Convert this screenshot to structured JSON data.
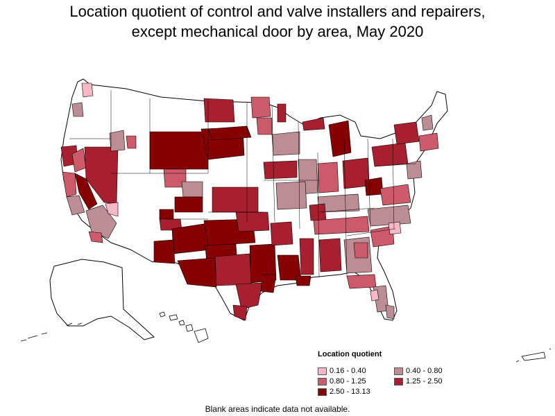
{
  "title": {
    "line1": "Location quotient of control and valve installers and repairers,",
    "line2": "except mechanical door by area, May 2020"
  },
  "legend": {
    "title": "Location quotient",
    "items": [
      {
        "label": "0.16 - 0.40",
        "color": "#f5b8c4"
      },
      {
        "label": "0.40 - 0.80",
        "color": "#bd8d94"
      },
      {
        "label": "0.80 - 1.25",
        "color": "#cc5a68"
      },
      {
        "label": "1.25 - 2.50",
        "color": "#a8202f"
      },
      {
        "label": "2.50 - 13.13",
        "color": "#870000"
      }
    ]
  },
  "footnote": "Blank areas indicate data not available.",
  "colors": {
    "blank": "#ffffff",
    "border": "#000000",
    "c1": "#f5b8c4",
    "c2": "#bd8d94",
    "c3": "#cc5a68",
    "c4": "#a8202f",
    "c5": "#870000"
  }
}
